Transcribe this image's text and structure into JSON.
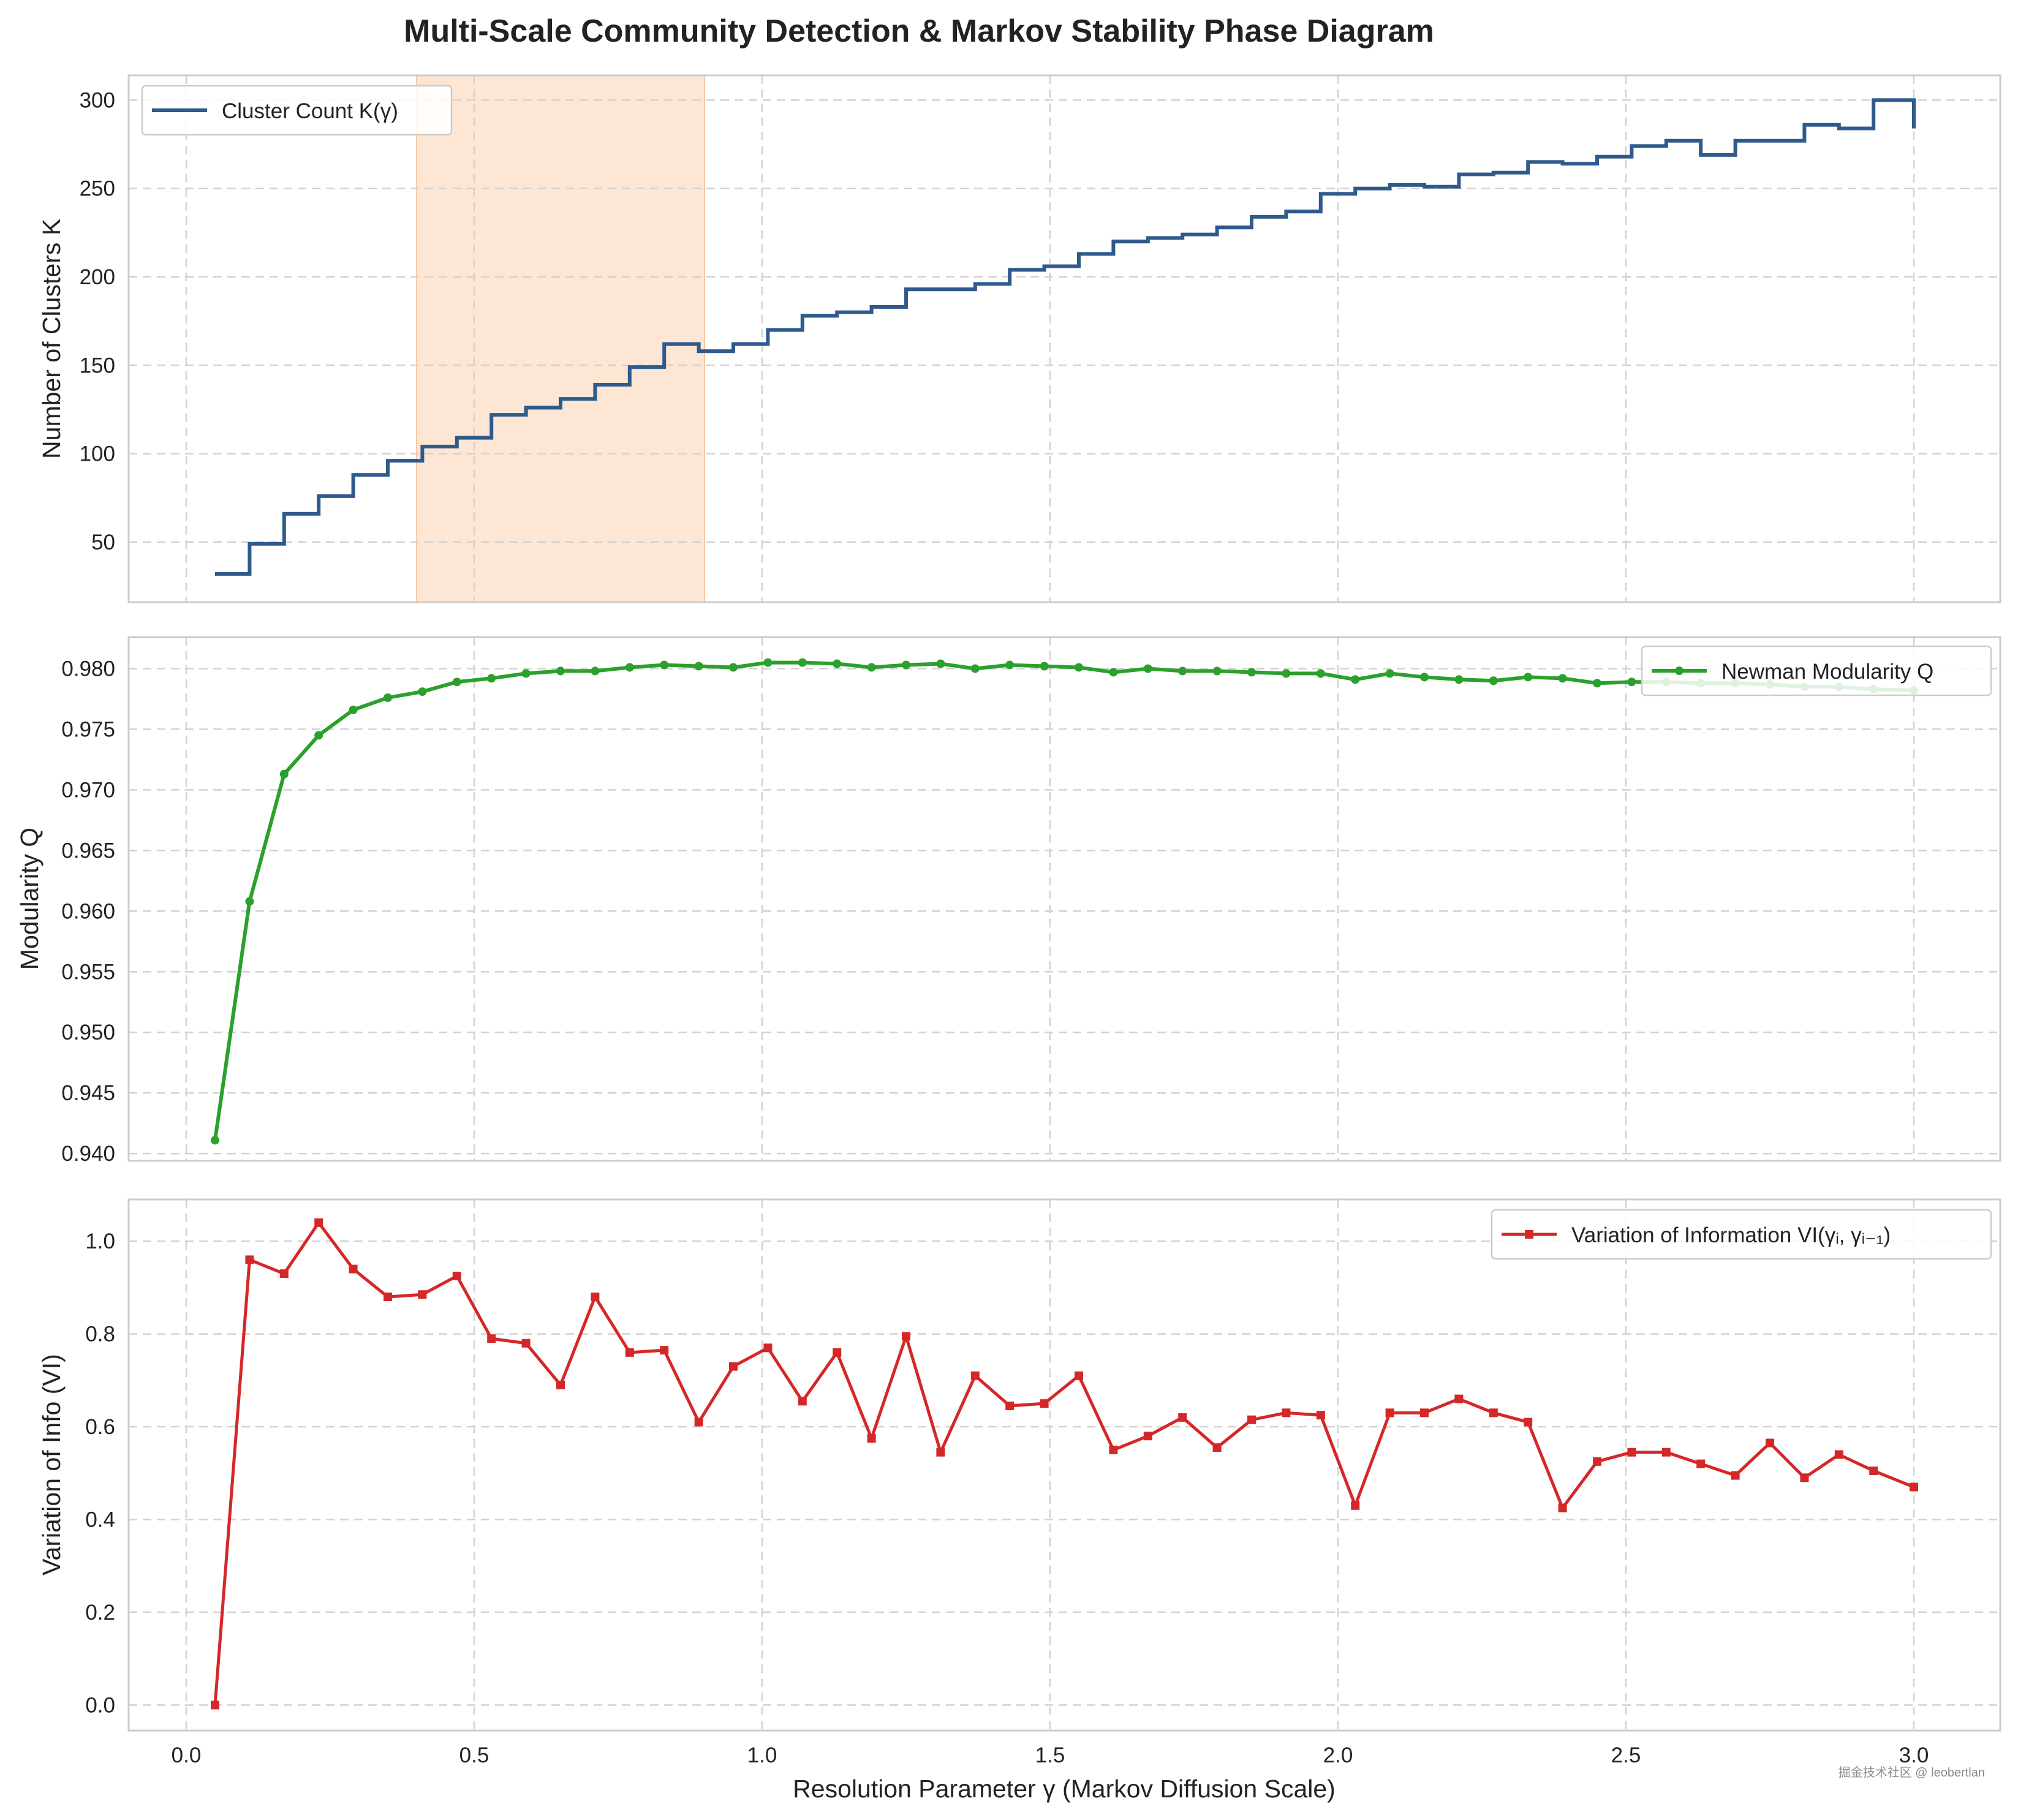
{
  "title": "Multi-Scale Community Detection & Markov Stability Phase Diagram",
  "watermark": "掘金技术社区 @ leobertlan",
  "xlabel": "Resolution Parameter γ (Markov Diffusion Scale)",
  "colors": {
    "clusters": "#2e5a8c",
    "modularity": "#2ca02c",
    "vi": "#d62728",
    "shade": "#fde2cc"
  },
  "chart_data": [
    {
      "type": "line",
      "step": true,
      "ylabel": "Number of Clusters K",
      "legend": "Cluster Count K(γ)",
      "legend_position": "upper-left",
      "xlim": [
        -0.1,
        3.15
      ],
      "ylim": [
        16,
        314
      ],
      "xticks": [
        0.0,
        0.5,
        1.0,
        1.5,
        2.0,
        2.5,
        3.0
      ],
      "xtick_labels": [
        "0.0",
        "0.5",
        "1.0",
        "1.5",
        "2.0",
        "2.5",
        "3.0"
      ],
      "yticks": [
        50,
        100,
        150,
        200,
        250,
        300
      ],
      "shaded_region": [
        0.4,
        0.9
      ],
      "x": [
        0.05,
        0.11,
        0.17,
        0.23,
        0.29,
        0.35,
        0.41,
        0.47,
        0.53,
        0.59,
        0.65,
        0.71,
        0.77,
        0.83,
        0.89,
        0.95,
        1.01,
        1.07,
        1.13,
        1.19,
        1.25,
        1.31,
        1.37,
        1.43,
        1.49,
        1.55,
        1.61,
        1.67,
        1.73,
        1.79,
        1.85,
        1.91,
        1.97,
        2.03,
        2.09,
        2.15,
        2.21,
        2.27,
        2.33,
        2.39,
        2.45,
        2.51,
        2.57,
        2.63,
        2.69,
        2.75,
        2.81,
        2.87,
        2.93,
        3.0
      ],
      "values": [
        32,
        49,
        66,
        76,
        88,
        96,
        104,
        109,
        122,
        126,
        131,
        139,
        149,
        162,
        158,
        162,
        170,
        178,
        180,
        183,
        193,
        193,
        196,
        204,
        206,
        213,
        220,
        222,
        224,
        228,
        234,
        237,
        247,
        250,
        252,
        251,
        258,
        259,
        265,
        264,
        268,
        274,
        277,
        269,
        277,
        277,
        286,
        284,
        300,
        284
      ]
    },
    {
      "type": "line",
      "ylabel": "Modularity Q",
      "legend": "Newman Modularity Q",
      "legend_position": "upper-right",
      "xlim": [
        -0.1,
        3.15
      ],
      "ylim": [
        0.9394,
        0.9826
      ],
      "yticks": [
        0.94,
        0.945,
        0.95,
        0.955,
        0.96,
        0.965,
        0.97,
        0.975,
        0.98
      ],
      "ytick_labels": [
        "0.940",
        "0.945",
        "0.950",
        "0.955",
        "0.960",
        "0.965",
        "0.970",
        "0.975",
        "0.980"
      ],
      "x": [
        0.05,
        0.11,
        0.17,
        0.23,
        0.29,
        0.35,
        0.41,
        0.47,
        0.53,
        0.59,
        0.65,
        0.71,
        0.77,
        0.83,
        0.89,
        0.95,
        1.01,
        1.07,
        1.13,
        1.19,
        1.25,
        1.31,
        1.37,
        1.43,
        1.49,
        1.55,
        1.61,
        1.67,
        1.73,
        1.79,
        1.85,
        1.91,
        1.97,
        2.03,
        2.09,
        2.15,
        2.21,
        2.27,
        2.33,
        2.39,
        2.45,
        2.51,
        2.57,
        2.63,
        2.69,
        2.75,
        2.81,
        2.87,
        2.93,
        3.0
      ],
      "values": [
        0.9411,
        0.9608,
        0.9713,
        0.9745,
        0.9766,
        0.9776,
        0.9781,
        0.9789,
        0.9792,
        0.9796,
        0.9798,
        0.9798,
        0.9801,
        0.9803,
        0.9802,
        0.9801,
        0.9805,
        0.9805,
        0.9804,
        0.9801,
        0.9803,
        0.9804,
        0.98,
        0.9803,
        0.9802,
        0.9801,
        0.9797,
        0.98,
        0.9798,
        0.9798,
        0.9797,
        0.9796,
        0.9796,
        0.9791,
        0.9796,
        0.9793,
        0.9791,
        0.979,
        0.9793,
        0.9792,
        0.9788,
        0.9789,
        0.9789,
        0.9788,
        0.9788,
        0.9787,
        0.9785,
        0.9785,
        0.9783,
        0.9782
      ]
    },
    {
      "type": "line",
      "ylabel": "Variation of Info (VI)",
      "legend": "Variation of Information VI(γᵢ, γᵢ₋₁)",
      "legend_position": "upper-right",
      "xlim": [
        -0.1,
        3.15
      ],
      "ylim": [
        -0.055,
        1.09
      ],
      "xticks": [
        0.0,
        0.5,
        1.0,
        1.5,
        2.0,
        2.5,
        3.0
      ],
      "xtick_labels": [
        "0.0",
        "0.5",
        "1.0",
        "1.5",
        "2.0",
        "2.5",
        "3.0"
      ],
      "yticks": [
        0.0,
        0.2,
        0.4,
        0.6,
        0.8,
        1.0
      ],
      "ytick_labels": [
        "0.0",
        "0.2",
        "0.4",
        "0.6",
        "0.8",
        "1.0"
      ],
      "x": [
        0.05,
        0.11,
        0.17,
        0.23,
        0.29,
        0.35,
        0.41,
        0.47,
        0.53,
        0.59,
        0.65,
        0.71,
        0.77,
        0.83,
        0.89,
        0.95,
        1.01,
        1.07,
        1.13,
        1.19,
        1.25,
        1.31,
        1.37,
        1.43,
        1.49,
        1.55,
        1.61,
        1.67,
        1.73,
        1.79,
        1.85,
        1.91,
        1.97,
        2.03,
        2.09,
        2.15,
        2.21,
        2.27,
        2.33,
        2.39,
        2.45,
        2.51,
        2.57,
        2.63,
        2.69,
        2.75,
        2.81,
        2.87,
        2.93,
        3.0
      ],
      "values": [
        0.0,
        0.96,
        0.93,
        1.04,
        0.94,
        0.88,
        0.885,
        0.925,
        0.79,
        0.78,
        0.69,
        0.88,
        0.76,
        0.765,
        0.61,
        0.73,
        0.77,
        0.655,
        0.76,
        0.575,
        0.795,
        0.545,
        0.71,
        0.645,
        0.65,
        0.71,
        0.55,
        0.58,
        0.62,
        0.555,
        0.615,
        0.63,
        0.625,
        0.43,
        0.63,
        0.63,
        0.66,
        0.63,
        0.61,
        0.425,
        0.525,
        0.545,
        0.545,
        0.52,
        0.495,
        0.565,
        0.49,
        0.54,
        0.505,
        0.47
      ]
    }
  ]
}
